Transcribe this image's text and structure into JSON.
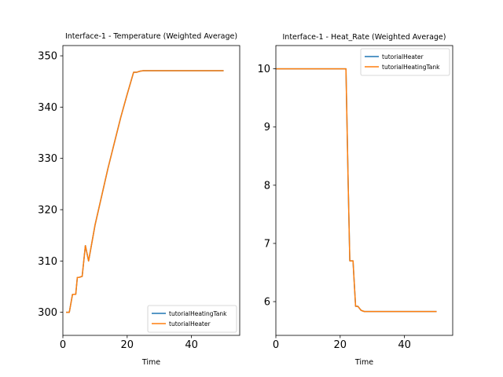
{
  "chart_data": [
    {
      "type": "line",
      "title": "Interface-1 - Temperature (Weighted Average)",
      "xlabel": "Time",
      "ylabel": "",
      "xlim": [
        0,
        55
      ],
      "ylim": [
        295.5,
        352
      ],
      "xticks": [
        0,
        20,
        40
      ],
      "yticks": [
        300,
        310,
        320,
        330,
        340,
        350
      ],
      "legend_position": "lower-right",
      "series": [
        {
          "name": "tutorialHeatingTank",
          "color": "#1f77b4",
          "x": [
            1,
            2,
            3,
            4,
            4.5,
            5,
            6,
            7,
            8,
            9,
            10,
            12,
            14,
            16,
            18,
            20,
            22,
            23,
            24,
            25,
            30,
            40,
            50
          ],
          "y": [
            300,
            300,
            303.5,
            303.5,
            306.8,
            306.8,
            307,
            313,
            310,
            313.5,
            317,
            322.5,
            328,
            333,
            338,
            342.5,
            346.8,
            346.8,
            347,
            347.1,
            347.1,
            347.1,
            347.1
          ]
        },
        {
          "name": "tutorialHeater",
          "color": "#ff7f0e",
          "x": [
            1,
            2,
            3,
            4,
            4.5,
            5,
            6,
            7,
            8,
            9,
            10,
            12,
            14,
            16,
            18,
            20,
            22,
            23,
            24,
            25,
            30,
            40,
            50
          ],
          "y": [
            300,
            300,
            303.5,
            303.5,
            306.8,
            306.8,
            307,
            313,
            310,
            313.5,
            317,
            322.5,
            328,
            333,
            338,
            342.5,
            346.8,
            346.8,
            347,
            347.1,
            347.1,
            347.1,
            347.1
          ]
        }
      ]
    },
    {
      "type": "line",
      "title": "Interface-1 - Heat_Rate (Weighted Average)",
      "xlabel": "Time",
      "ylabel": "",
      "xlim": [
        0,
        55
      ],
      "ylim": [
        5.42,
        10.4
      ],
      "xticks": [
        0,
        20,
        40
      ],
      "yticks": [
        6,
        7,
        8,
        9,
        10
      ],
      "legend_position": "upper-right",
      "series": [
        {
          "name": "tutorialHeater",
          "color": "#1f77b4",
          "x": [
            0,
            10,
            20,
            21.8,
            22.5,
            23,
            24,
            24.3,
            24.8,
            25.5,
            26.5,
            27.5,
            30,
            40,
            50
          ],
          "y": [
            10,
            10,
            10,
            10,
            8.0,
            6.7,
            6.7,
            6.4,
            5.92,
            5.92,
            5.85,
            5.83,
            5.83,
            5.83,
            5.83
          ]
        },
        {
          "name": "tutorialHeatingTank",
          "color": "#ff7f0e",
          "x": [
            0,
            10,
            20,
            21.8,
            22.5,
            23,
            24,
            24.3,
            24.8,
            25.5,
            26.5,
            27.5,
            30,
            40,
            50
          ],
          "y": [
            10,
            10,
            10,
            10,
            8.0,
            6.7,
            6.7,
            6.4,
            5.92,
            5.92,
            5.85,
            5.83,
            5.83,
            5.83,
            5.83
          ]
        }
      ]
    }
  ]
}
